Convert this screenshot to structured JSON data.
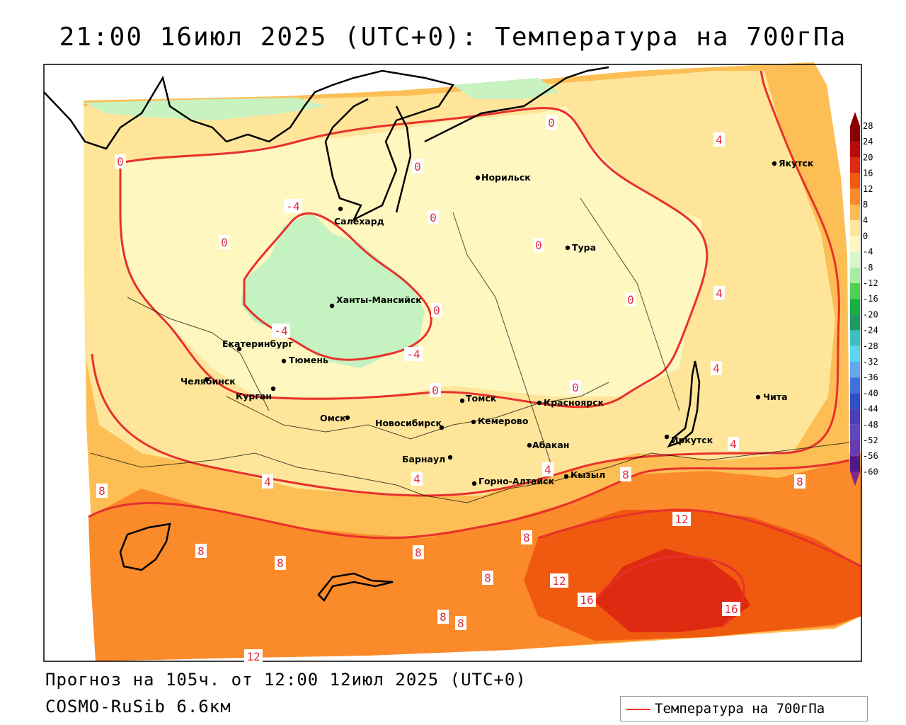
{
  "title": "21:00 16июл 2025 (UTC+0): Температура на 700гПа",
  "footer": {
    "forecast": "Прогноз на 105ч. от 12:00 12июл 2025 (UTC+0)",
    "model": "COSMO-RuSib 6.6км"
  },
  "legend": {
    "label": "Температура на 700гПа",
    "color": "#e8302c"
  },
  "colorbar": {
    "ticks": [
      "28",
      "24",
      "20",
      "16",
      "12",
      "8",
      "4",
      "0",
      "-4",
      "-8",
      "-12",
      "-16",
      "-20",
      "-24",
      "-28",
      "-32",
      "-36",
      "-40",
      "-44",
      "-48",
      "-52",
      "-56",
      "-60"
    ],
    "colors": [
      "#8a0000",
      "#b80a0a",
      "#dd2a10",
      "#f05a10",
      "#fb8a2a",
      "#fdba55",
      "#fee59a",
      "#fff7c0",
      "#d8f7c8",
      "#a8eea0",
      "#4fd050",
      "#18b040",
      "#1e9b63",
      "#3cbfbf",
      "#5dd4f0",
      "#66a8ec",
      "#4070dc",
      "#3050c8",
      "#4a40b8",
      "#5f48c0",
      "#6a3ab0",
      "#501888",
      "#7d2b90"
    ]
  },
  "cities": [
    {
      "name": "Норильск"
    },
    {
      "name": "Якутск"
    },
    {
      "name": "Салехард"
    },
    {
      "name": "Тура"
    },
    {
      "name": "Ханты-Мансийск"
    },
    {
      "name": "Екатеринбург"
    },
    {
      "name": "Тюмень"
    },
    {
      "name": "Челябинск"
    },
    {
      "name": "Курган"
    },
    {
      "name": "Омск"
    },
    {
      "name": "Новосибирск"
    },
    {
      "name": "Томск"
    },
    {
      "name": "Кемерово"
    },
    {
      "name": "Красноярск"
    },
    {
      "name": "Барнаул"
    },
    {
      "name": "Абакан"
    },
    {
      "name": "Горно-Алтайск"
    },
    {
      "name": "Кызыл"
    },
    {
      "name": "Иркутск"
    },
    {
      "name": "Чита"
    }
  ],
  "isotherm_labels": [
    {
      "text": "0"
    },
    {
      "text": "0"
    },
    {
      "text": "0"
    },
    {
      "text": "0"
    },
    {
      "text": "0"
    },
    {
      "text": "0"
    },
    {
      "text": "0"
    },
    {
      "text": "0"
    },
    {
      "text": "0"
    },
    {
      "text": "0"
    },
    {
      "text": "-4"
    },
    {
      "text": "-4"
    },
    {
      "text": "-4"
    },
    {
      "text": "4"
    },
    {
      "text": "4"
    },
    {
      "text": "4"
    },
    {
      "text": "4"
    },
    {
      "text": "4"
    },
    {
      "text": "4"
    },
    {
      "text": "8"
    },
    {
      "text": "8"
    },
    {
      "text": "8"
    },
    {
      "text": "8"
    },
    {
      "text": "8"
    },
    {
      "text": "8"
    },
    {
      "text": "8"
    },
    {
      "text": "8"
    },
    {
      "text": "8"
    },
    {
      "text": "8"
    },
    {
      "text": "12"
    },
    {
      "text": "12"
    },
    {
      "text": "12"
    },
    {
      "text": "16"
    },
    {
      "text": "16"
    },
    {
      "text": "4"
    }
  ]
}
